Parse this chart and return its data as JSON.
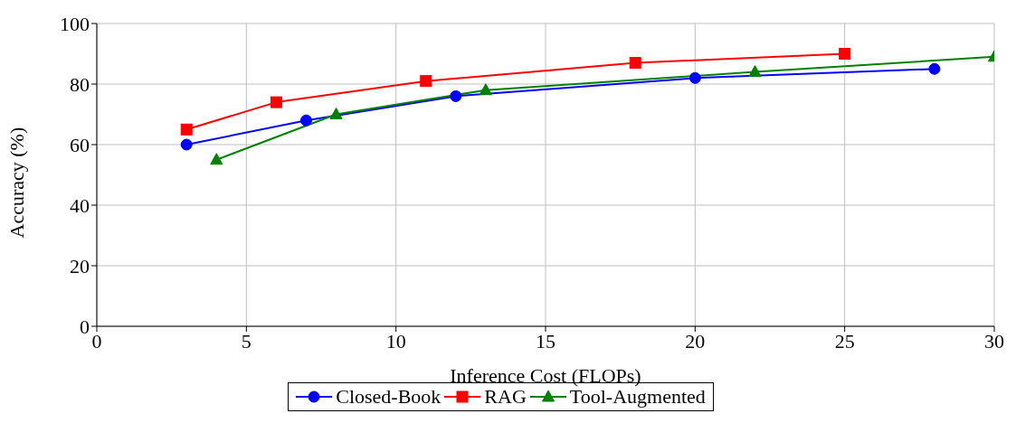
{
  "chart_data": {
    "type": "line",
    "xlabel": "Inference Cost (FLOPs)",
    "ylabel": "Accuracy (%)",
    "xlim": [
      0,
      30
    ],
    "xticks": [
      0,
      5,
      10,
      15,
      20,
      25,
      30
    ],
    "ylim": [
      0,
      100
    ],
    "yticks": [
      0,
      20,
      40,
      60,
      80,
      100
    ],
    "grid": true,
    "legend": "bottom",
    "line_style": "solid",
    "series": [
      {
        "name": "Closed-Book",
        "color": "#0000ff",
        "marker": "circle",
        "x": [
          3,
          7,
          12,
          20,
          28
        ],
        "values": [
          60,
          68,
          76,
          82,
          85
        ]
      },
      {
        "name": "RAG",
        "color": "#ff0000",
        "marker": "square",
        "x": [
          3,
          6,
          11,
          18,
          25
        ],
        "values": [
          65,
          74,
          81,
          87,
          90
        ]
      },
      {
        "name": "Tool-Augmented",
        "color": "#008000",
        "marker": "triangle",
        "x": [
          4,
          8,
          13,
          22,
          30
        ],
        "values": [
          55,
          70,
          78,
          84,
          89
        ]
      }
    ]
  }
}
